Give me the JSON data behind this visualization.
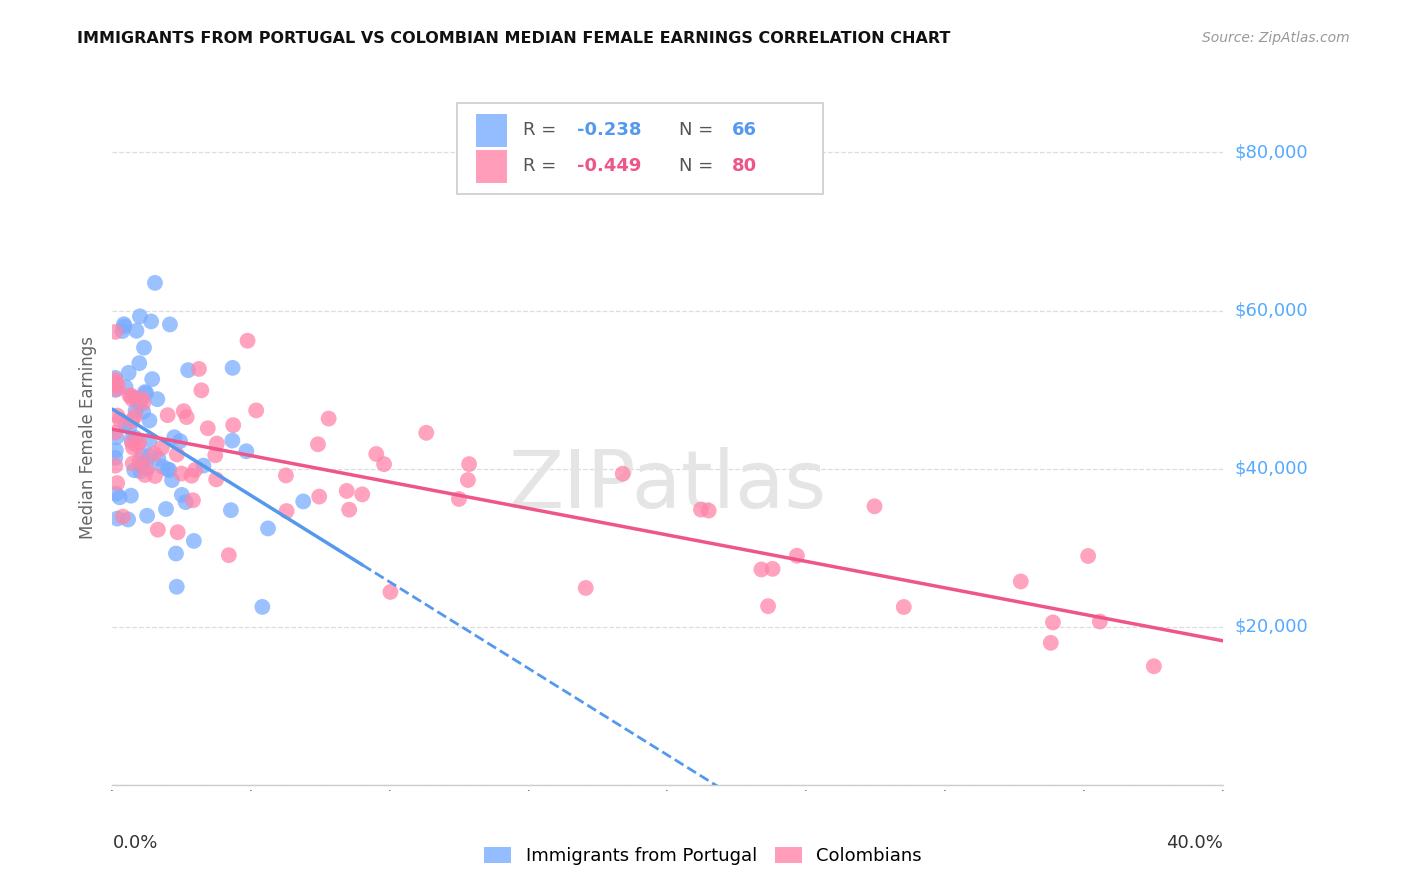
{
  "title": "IMMIGRANTS FROM PORTUGAL VS COLOMBIAN MEDIAN FEMALE EARNINGS CORRELATION CHART",
  "source": "Source: ZipAtlas.com",
  "ylabel": "Median Female Earnings",
  "xlim": [
    0.0,
    0.4
  ],
  "ylim": [
    0,
    88000
  ],
  "portugal_R": -0.238,
  "portugal_N": 66,
  "colombian_R": -0.449,
  "colombian_N": 80,
  "portugal_color": "#7aadff",
  "colombian_color": "#ff85aa",
  "portugal_line_color": "#5599ee",
  "colombian_line_color": "#ee5588",
  "right_label_color": "#55aaff",
  "title_color": "#111111",
  "source_color": "#999999",
  "grid_color": "#dddddd",
  "watermark_color": "#e5e5e5",
  "bg_color": "#ffffff",
  "legend_R_portugal": "-0.238",
  "legend_N_portugal": "66",
  "legend_R_colombian": "-0.449",
  "legend_N_colombian": "80",
  "ytick_vals": [
    0,
    20000,
    40000,
    60000,
    80000
  ],
  "ytick_labels": [
    "",
    "$20,000",
    "$40,000",
    "$60,000",
    "$80,000"
  ],
  "xtick_labels_edge": [
    "0.0%",
    "40.0%"
  ]
}
